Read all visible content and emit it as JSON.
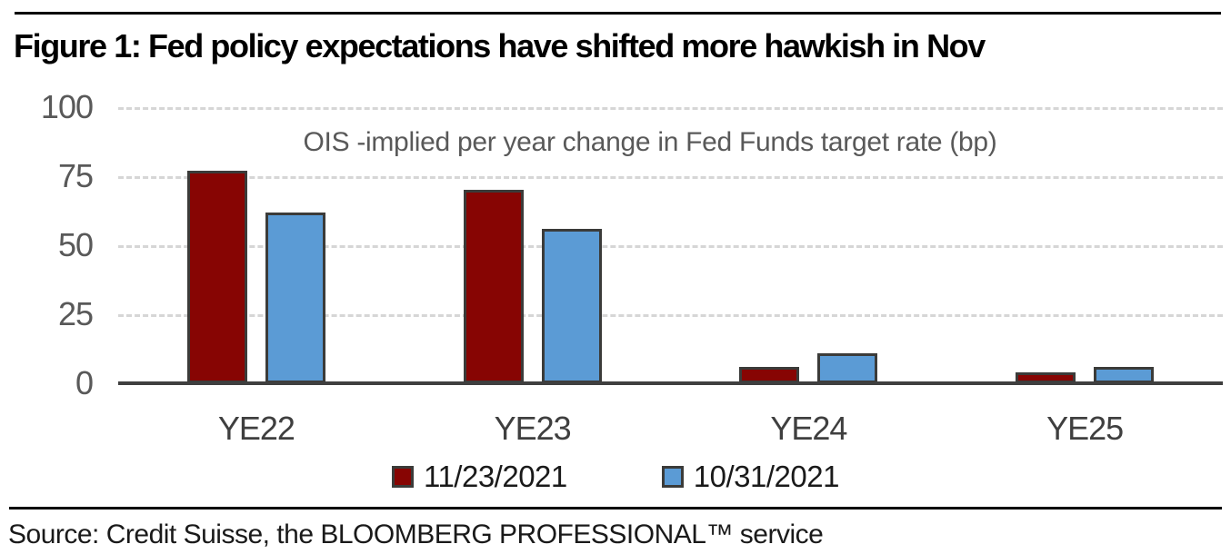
{
  "title": "Figure 1: Fed policy expectations have shifted more hawkish in Nov",
  "source": "Source: Credit Suisse, the BLOOMBERG PROFESSIONAL™ service",
  "colors": {
    "series1": "#870503",
    "series2": "#5B9BD5",
    "bar_border": "#3B3B39",
    "axis_line": "#3F3F3F",
    "gridline": "#D6D6D6",
    "tick_label": "#595959",
    "rule": "#000000"
  },
  "chart_data": {
    "type": "bar",
    "title": "Figure 1: Fed policy expectations have shifted more hawkish in Nov",
    "subtitle": "OIS -implied per year change in Fed Funds target rate (bp)",
    "categories": [
      "YE22",
      "YE23",
      "YE24",
      "YE25"
    ],
    "series": [
      {
        "name": "11/23/2021",
        "color": "#870503",
        "values": [
          77,
          70,
          6,
          4
        ]
      },
      {
        "name": "10/31/2021",
        "color": "#5B9BD5",
        "values": [
          62,
          56,
          11,
          6
        ]
      }
    ],
    "xlabel": "",
    "ylabel": "",
    "ylim": [
      0,
      100
    ],
    "yticks": [
      0,
      25,
      50,
      75,
      100
    ],
    "grid": "horizontal-dashed",
    "legend_position": "bottom"
  }
}
